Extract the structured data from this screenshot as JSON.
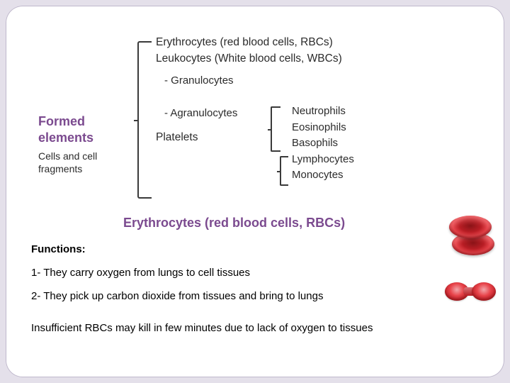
{
  "colors": {
    "page_bg": "#e4e0ea",
    "slide_bg": "#ffffff",
    "accent": "#7b4a8f",
    "text": "#2b2b2b",
    "bracket": "#3a3a3a",
    "rbc_dark": "#8a1418",
    "rbc_mid": "#b81d24",
    "rbc_light": "#e8434a"
  },
  "left": {
    "title_l1": "Formed",
    "title_l2": "elements",
    "subtitle": "Cells and cell fragments"
  },
  "mid": {
    "line1": "Erythrocytes (red blood cells, RBCs)",
    "line2": "Leukocytes (White blood cells, WBCs)",
    "sub1": "- Granulocytes",
    "sub2": "- Agranulocytes",
    "line3": "Platelets"
  },
  "right": {
    "items": [
      "Neutrophils",
      "Eosinophils",
      "Basophils",
      "Lymphocytes",
      "Monocytes"
    ]
  },
  "section": {
    "title": "Erythrocytes (red blood cells, RBCs)",
    "functions_label": "Functions:",
    "f1": "1- They carry oxygen from lungs to cell tissues",
    "f2": "2- They pick up carbon dioxide from tissues and bring to lungs",
    "note": "Insufficient RBCs may kill in few minutes due to lack of oxygen to tissues"
  }
}
